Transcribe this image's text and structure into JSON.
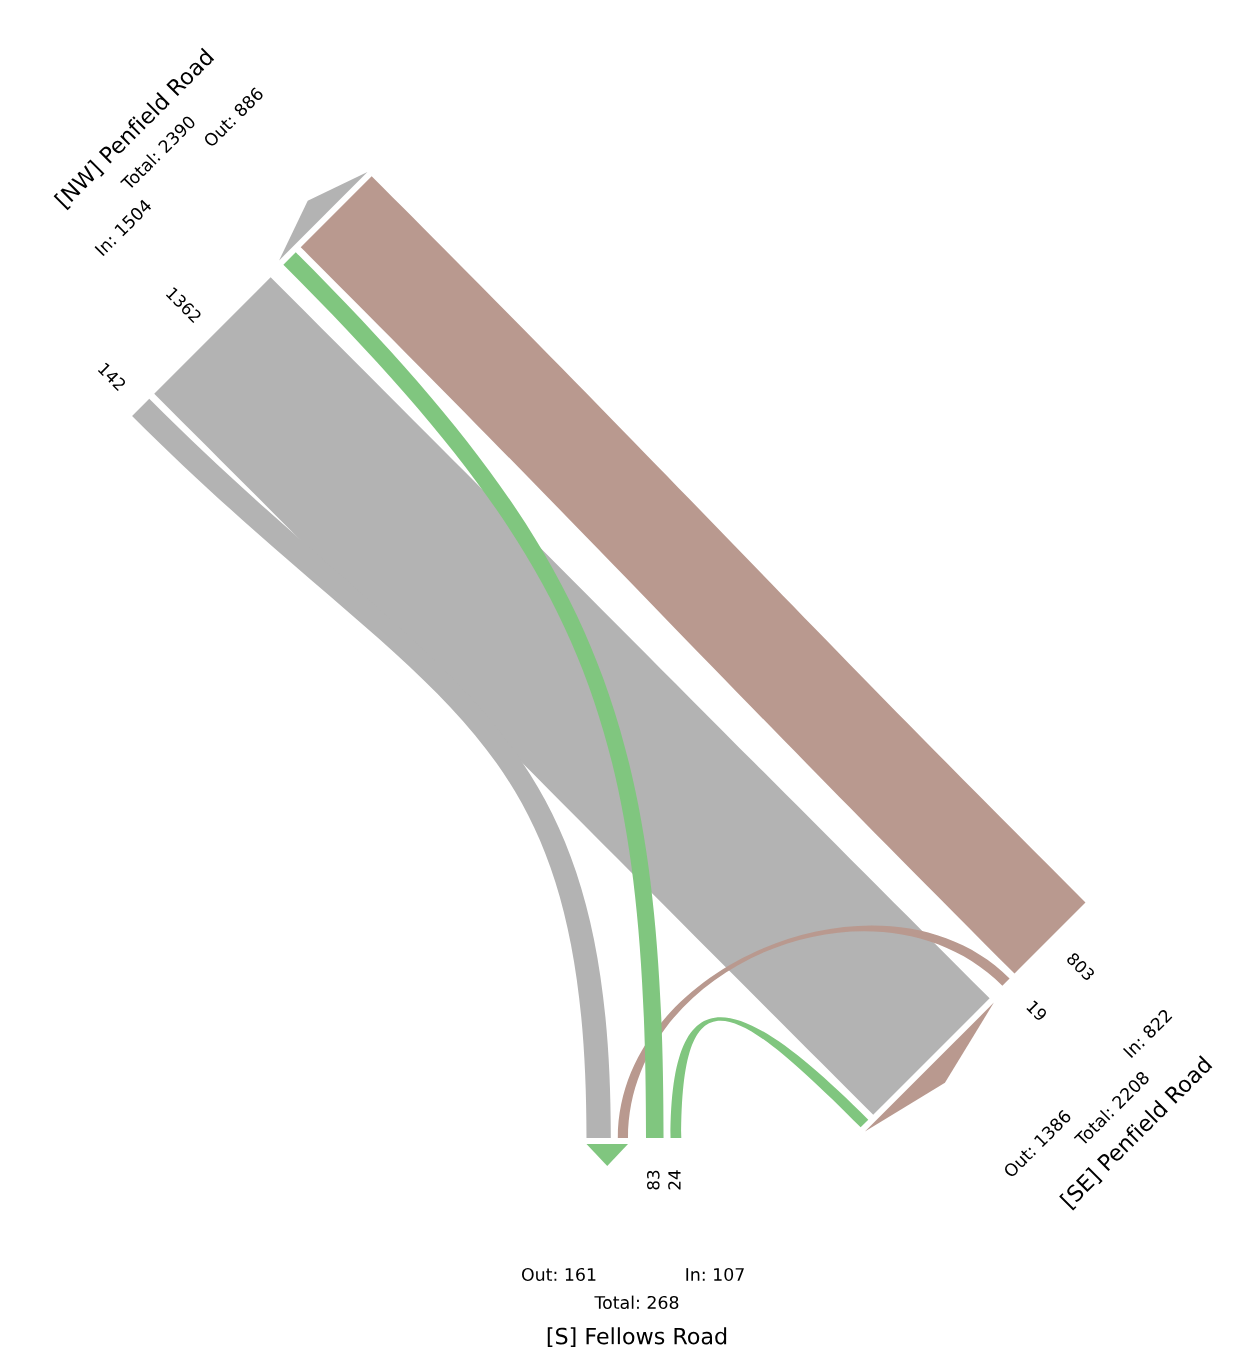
{
  "chart_data": {
    "type": "other",
    "categories": [
      "[NW] Penfield Road",
      "[SE] Penfield Road",
      "[S] Fellows Road"
    ],
    "series": [
      {
        "values": [
          null,
          803,
          83
        ],
        "colors": [
          null,
          "#b9998f",
          "#80c67f"
        ]
      },
      {
        "values": [
          1362,
          null,
          24
        ],
        "colors": [
          "#b3b3b3",
          null,
          "#80c67f"
        ]
      },
      {
        "values": [
          142,
          19,
          null
        ],
        "colors": [
          "#b3b3b3",
          "#b9998f",
          null
        ]
      }
    ],
    "data_labels": true,
    "annotations": [
      "In: 1504",
      "Out: 886",
      "Total: 2390",
      "In: 822",
      "Out: 1386",
      "Total: 2208",
      "In: 107",
      "Out: 161",
      "Total: 268"
    ]
  }
}
